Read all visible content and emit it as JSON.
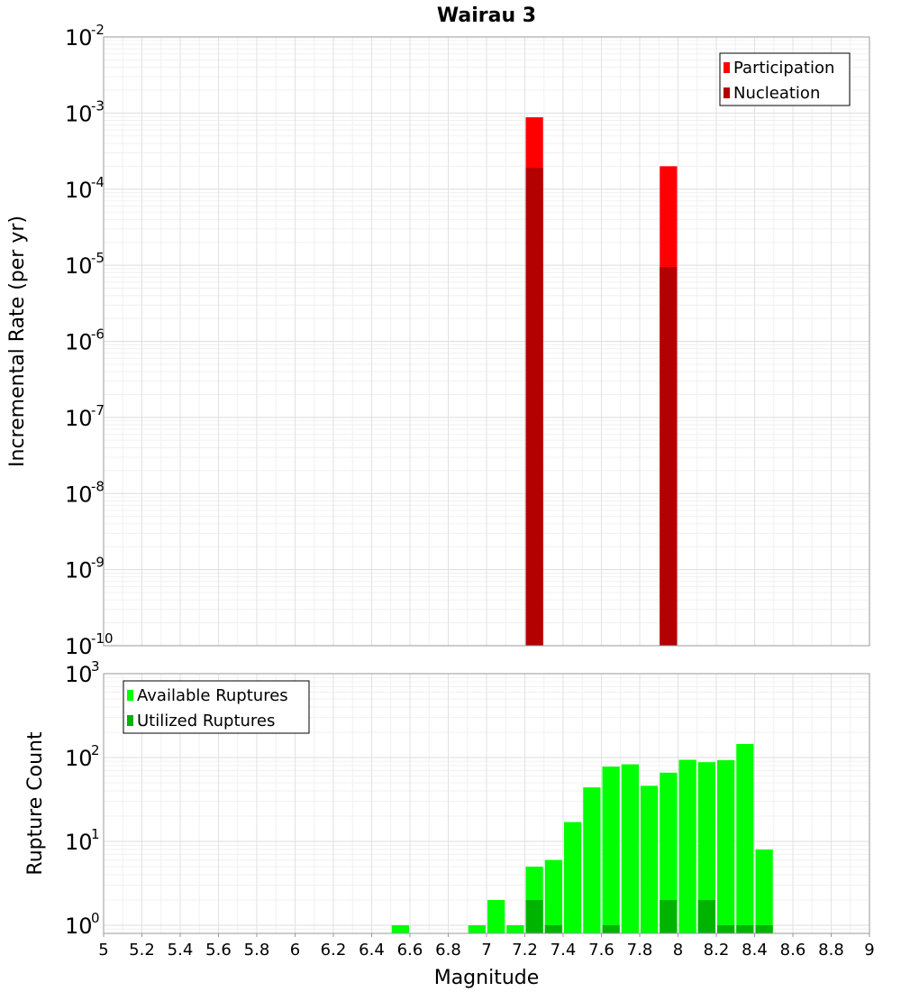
{
  "chart_data": [
    {
      "type": "bar",
      "title": "Wairau 3",
      "xlabel": "",
      "ylabel": "Incremental Rate (per yr)",
      "xlim": [
        5,
        9
      ],
      "ylim": [
        1e-10,
        0.01
      ],
      "y_scale": "log",
      "y_tick_exponents": [
        -10,
        -9,
        -8,
        -7,
        -6,
        -5,
        -4,
        -3,
        -2
      ],
      "grid": true,
      "legend_position": "top-right",
      "bar_width": 0.1,
      "series": [
        {
          "name": "Participation",
          "color": "#ff0000",
          "points": [
            {
              "x": 7.25,
              "y": 0.00088
            },
            {
              "x": 7.95,
              "y": 0.0002
            }
          ]
        },
        {
          "name": "Nucleation",
          "color": "#b30000",
          "points": [
            {
              "x": 7.25,
              "y": 0.00019
            },
            {
              "x": 7.95,
              "y": 9.5e-06
            }
          ]
        }
      ]
    },
    {
      "type": "bar",
      "title": "",
      "xlabel": "Magnitude",
      "ylabel": "Rupture Count",
      "xlim": [
        5,
        9
      ],
      "ylim": [
        0.8,
        1000
      ],
      "y_scale": "log",
      "y_tick_exponents": [
        0,
        1,
        2,
        3
      ],
      "x_ticks": [
        "5",
        "5.2",
        "5.4",
        "5.6",
        "5.8",
        "6",
        "6.2",
        "6.4",
        "6.6",
        "6.8",
        "7",
        "7.2",
        "7.4",
        "7.6",
        "7.8",
        "8",
        "8.2",
        "8.4",
        "8.6",
        "8.8",
        "9"
      ],
      "grid": true,
      "legend_position": "top-left",
      "bar_width": 0.1,
      "series": [
        {
          "name": "Available Ruptures",
          "color": "#00ff00",
          "points": [
            {
              "x": 6.55,
              "y": 1
            },
            {
              "x": 6.95,
              "y": 1
            },
            {
              "x": 7.05,
              "y": 2
            },
            {
              "x": 7.15,
              "y": 1
            },
            {
              "x": 7.25,
              "y": 5
            },
            {
              "x": 7.35,
              "y": 6
            },
            {
              "x": 7.45,
              "y": 17
            },
            {
              "x": 7.55,
              "y": 44
            },
            {
              "x": 7.65,
              "y": 78
            },
            {
              "x": 7.75,
              "y": 83
            },
            {
              "x": 7.85,
              "y": 46
            },
            {
              "x": 7.95,
              "y": 66
            },
            {
              "x": 8.05,
              "y": 94
            },
            {
              "x": 8.15,
              "y": 88
            },
            {
              "x": 8.25,
              "y": 93
            },
            {
              "x": 8.35,
              "y": 145
            },
            {
              "x": 8.45,
              "y": 8
            }
          ]
        },
        {
          "name": "Utilized Ruptures",
          "color": "#00b300",
          "points": [
            {
              "x": 7.25,
              "y": 2
            },
            {
              "x": 7.35,
              "y": 1
            },
            {
              "x": 7.65,
              "y": 1
            },
            {
              "x": 7.95,
              "y": 2
            },
            {
              "x": 8.15,
              "y": 2
            },
            {
              "x": 8.25,
              "y": 1
            },
            {
              "x": 8.35,
              "y": 1
            },
            {
              "x": 8.45,
              "y": 1
            }
          ]
        }
      ]
    }
  ]
}
